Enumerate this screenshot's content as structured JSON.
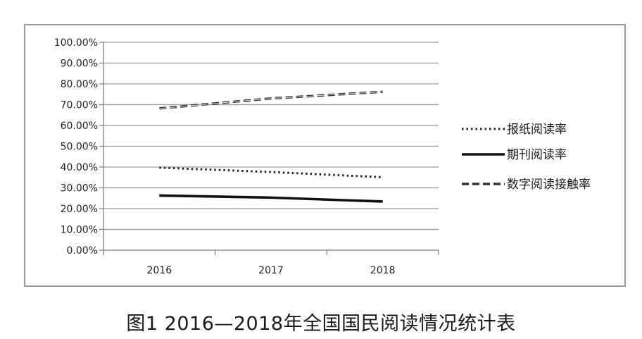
{
  "caption": "图1  2016—2018年全国国民阅读情况统计表",
  "chart_data": {
    "type": "line",
    "x": [
      "2016",
      "2017",
      "2018"
    ],
    "ylim": [
      0,
      100
    ],
    "y_ticks": [
      "0.00%",
      "10.00%",
      "20.00%",
      "30.00%",
      "40.00%",
      "50.00%",
      "60.00%",
      "70.00%",
      "80.00%",
      "90.00%",
      "100.00%"
    ],
    "grid": true,
    "legend": "right",
    "series": [
      {
        "name": "报纸阅读率",
        "style": "dotted",
        "color": "#222222",
        "values": [
          39.7,
          37.6,
          35.1
        ]
      },
      {
        "name": "期刊阅读率",
        "style": "solid",
        "color": "#111111",
        "values": [
          26.3,
          25.3,
          23.4
        ]
      },
      {
        "name": "数字阅读接触率",
        "style": "dashed",
        "color": "#333333",
        "values": [
          68.2,
          73.0,
          76.2
        ]
      }
    ]
  }
}
